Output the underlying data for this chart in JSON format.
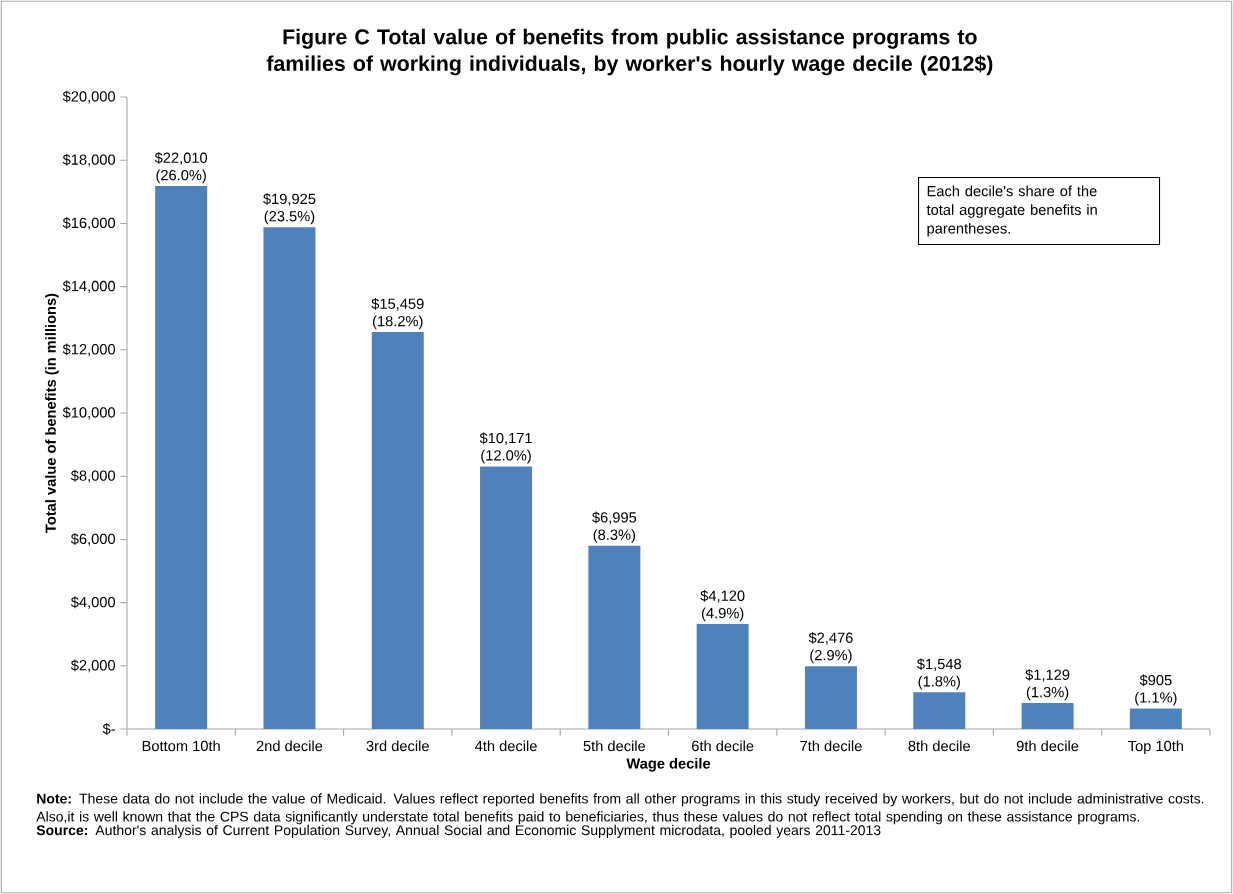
{
  "chart_data": {
    "type": "bar",
    "title": "Figure C Total value of benefits from public assistance programs to families of working individuals, by worker's hourly wage decile (2012$)",
    "xlabel": "Wage decile",
    "ylabel": "Total value of benefits (in millions)",
    "categories": [
      "Bottom 10th",
      "2nd decile",
      "3rd decile",
      "4th decile",
      "5th decile",
      "6th decile",
      "7th decile",
      "8th decile",
      "9th decile",
      "Top 10th"
    ],
    "values": [
      17180,
      15880,
      12560,
      8310,
      5800,
      3320,
      1990,
      1160,
      820,
      650
    ],
    "color": "#4f81bd",
    "ylim": [
      0,
      20000
    ],
    "yticks": [
      {
        "value": 0,
        "label": "$-"
      },
      {
        "value": 2000,
        "label": "$2,000"
      },
      {
        "value": 4000,
        "label": "$4,000"
      },
      {
        "value": 6000,
        "label": "$6,000"
      },
      {
        "value": 8000,
        "label": "$8,000"
      },
      {
        "value": 10000,
        "label": "$10,000"
      },
      {
        "value": 12000,
        "label": "$12,000"
      },
      {
        "value": 14000,
        "label": "$14,000"
      },
      {
        "value": 16000,
        "label": "$16,000"
      },
      {
        "value": 18000,
        "label": "$18,000"
      },
      {
        "value": 20000,
        "label": "$20,000"
      }
    ],
    "annotations": [
      "Each decile's share of the total aggregate benefits in parentheses.",
      {
        "text": "$22,010 (26.0%)",
        "x": "Bottom 10th",
        "y": 17180
      },
      {
        "text": "$19,925 (23.5%)",
        "x": "2nd decile",
        "y": 15880
      },
      {
        "text": "$15,459 (18.2%)",
        "x": "3rd decile",
        "y": 12560
      },
      {
        "text": "$10,171 (12.0%)",
        "x": "4th decile",
        "y": 8310
      },
      {
        "text": "$6,995 (8.3%)",
        "x": "5th decile",
        "y": 5800
      },
      {
        "text": "$4,120 (4.9%)",
        "x": "6th decile",
        "y": 3320
      },
      {
        "text": "$2,476 (2.9%)",
        "x": "7th decile",
        "y": 1990
      },
      {
        "text": "$1,548 (1.8%)",
        "x": "8th decile",
        "y": 1160
      },
      {
        "text": "$1,129 (1.3%)",
        "x": "9th decile",
        "y": 820
      },
      {
        "text": "$905 (1.1%)",
        "x": "Top 10th",
        "y": 650
      },
      "**Note:** These data do not include the value of Medicaid. Values reflect reported benefits from all other programs in this study received by workers, but do not include administrative costs. Also,it is well known that the CPS data significantly understate total benefits paid to beneficiaries, thus these values do not reflect total spending on these assistance programs.",
      "**Source:** Author's analysis of Current Population Survey, Annual Social and Economic Supplyment microdata, pooled years 2011-2013"
    ]
  }
}
